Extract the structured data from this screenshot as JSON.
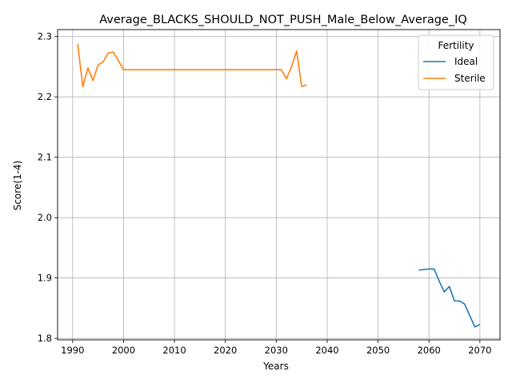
{
  "chart_data": {
    "type": "line",
    "title": "Average_BLACKS_SHOULD_NOT_PUSH_Male_Below_Average_IQ",
    "xlabel": "Years",
    "ylabel": "Score(1-4)",
    "xlim": [
      1987.05,
      2073.95
    ],
    "ylim": [
      1.7976,
      2.3115
    ],
    "xticks": [
      1990,
      2000,
      2010,
      2020,
      2030,
      2040,
      2050,
      2060,
      2070
    ],
    "xtick_labels": [
      "1990",
      "2000",
      "2010",
      "2020",
      "2030",
      "2040",
      "2050",
      "2060",
      "2070"
    ],
    "yticks": [
      1.8,
      1.9,
      2.0,
      2.1,
      2.2,
      2.3
    ],
    "ytick_labels": [
      "1.8",
      "1.9",
      "2.0",
      "2.1",
      "2.2",
      "2.3"
    ],
    "grid": true,
    "legend": {
      "title": "Fertility",
      "placement": "top-right"
    },
    "series": [
      {
        "name": "Ideal",
        "color": "#1f77b4",
        "x": [
          2058,
          2059,
          2060,
          2061,
          2062,
          2063,
          2064,
          2065,
          2066,
          2067,
          2068,
          2069,
          2070
        ],
        "y": [
          1.913,
          1.914,
          1.915,
          1.915,
          1.895,
          1.877,
          1.886,
          1.862,
          1.862,
          1.857,
          1.838,
          1.819,
          1.823
        ]
      },
      {
        "name": "Sterile",
        "color": "#ff7f0e",
        "x": [
          1991,
          1992,
          1993,
          1994,
          1995,
          1996,
          1997,
          1998,
          1999,
          2000,
          2001,
          2002,
          2003,
          2004,
          2005,
          2006,
          2007,
          2008,
          2009,
          2010,
          2011,
          2012,
          2013,
          2014,
          2015,
          2016,
          2017,
          2018,
          2019,
          2020,
          2021,
          2022,
          2023,
          2024,
          2025,
          2026,
          2027,
          2028,
          2029,
          2030,
          2031,
          2032,
          2033,
          2034,
          2035,
          2036
        ],
        "y": [
          2.288,
          2.217,
          2.248,
          2.227,
          2.253,
          2.258,
          2.273,
          2.274,
          2.26,
          2.245,
          2.245,
          2.245,
          2.245,
          2.245,
          2.245,
          2.245,
          2.245,
          2.245,
          2.245,
          2.245,
          2.245,
          2.245,
          2.245,
          2.245,
          2.245,
          2.245,
          2.245,
          2.245,
          2.245,
          2.245,
          2.245,
          2.245,
          2.245,
          2.245,
          2.245,
          2.245,
          2.245,
          2.245,
          2.245,
          2.245,
          2.245,
          2.23,
          2.25,
          2.276,
          2.217,
          2.22
        ]
      }
    ]
  }
}
